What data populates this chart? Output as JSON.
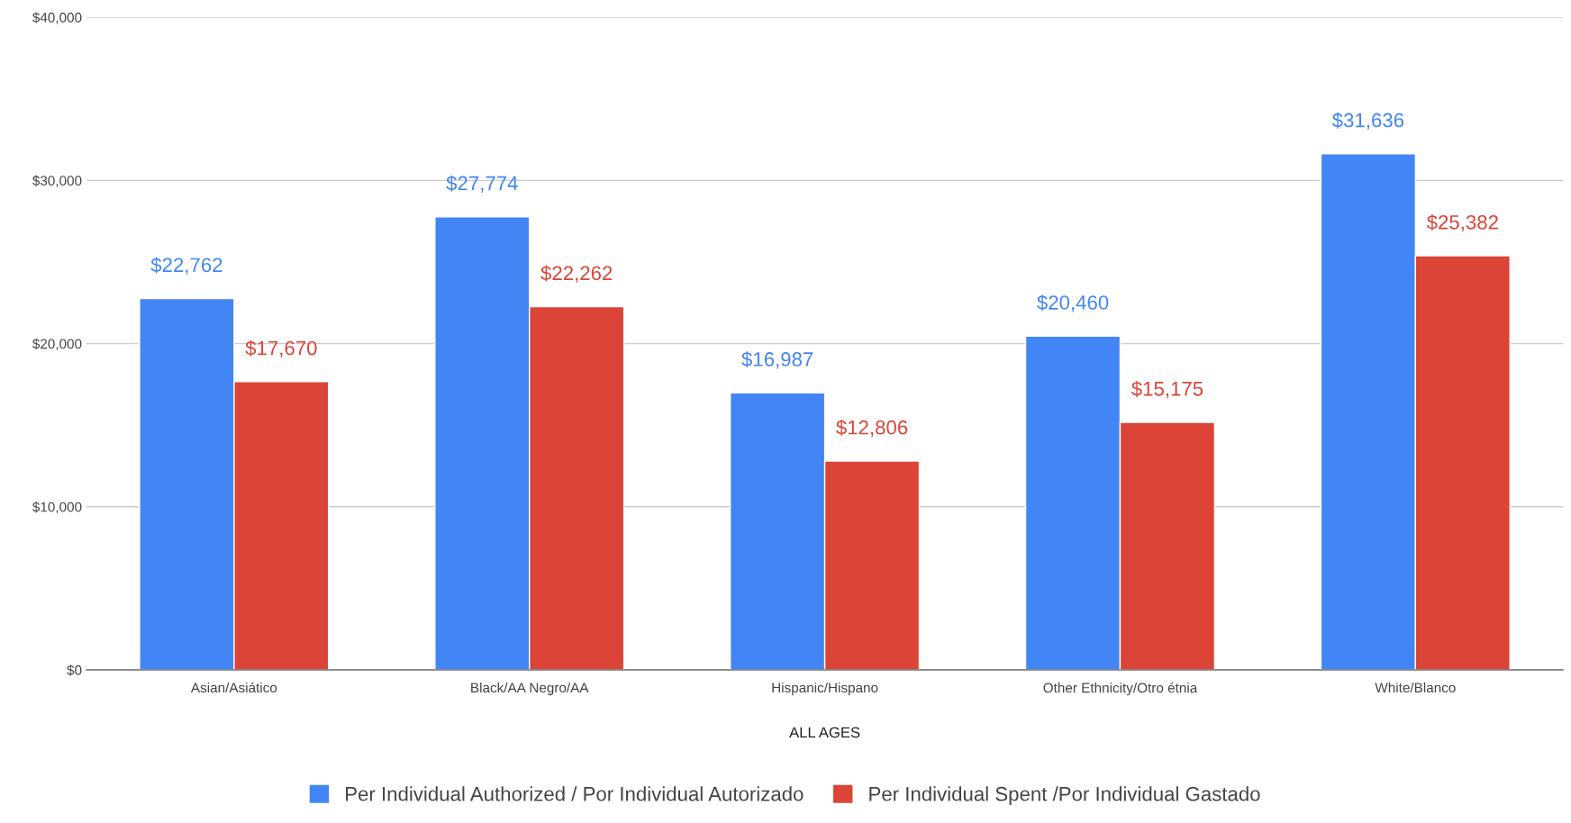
{
  "chart_data": {
    "type": "bar",
    "xlabel": "ALL AGES",
    "categories": [
      "Asian/Asiático",
      "Black/AA Negro/AA",
      "Hispanic/Hispano",
      "Other Ethnicity/Otro étnia",
      "White/Blanco"
    ],
    "series": [
      {
        "name": "Per Individual Authorized / Por Individual Autorizado",
        "color": "#4285f4",
        "values": [
          22762,
          27774,
          16987,
          20460,
          31636
        ],
        "value_labels": [
          "$22,762",
          "$27,774",
          "$16,987",
          "$20,460",
          "$31,636"
        ]
      },
      {
        "name": "Per Individual Spent /Por Individual Gastado",
        "color": "#db4437",
        "values": [
          17670,
          22262,
          12806,
          15175,
          25382
        ],
        "value_labels": [
          "$17,670",
          "$22,262",
          "$12,806",
          "$15,175",
          "$25,382"
        ]
      }
    ],
    "ylim": [
      0,
      40000
    ],
    "yticks": [
      {
        "value": 0,
        "label": "$0"
      },
      {
        "value": 10000,
        "label": "$10,000"
      },
      {
        "value": 20000,
        "label": "$20,000"
      },
      {
        "value": 30000,
        "label": "$30,000"
      },
      {
        "value": 40000,
        "label": "$40,000"
      }
    ],
    "grid": "y",
    "legend": "bottom"
  }
}
